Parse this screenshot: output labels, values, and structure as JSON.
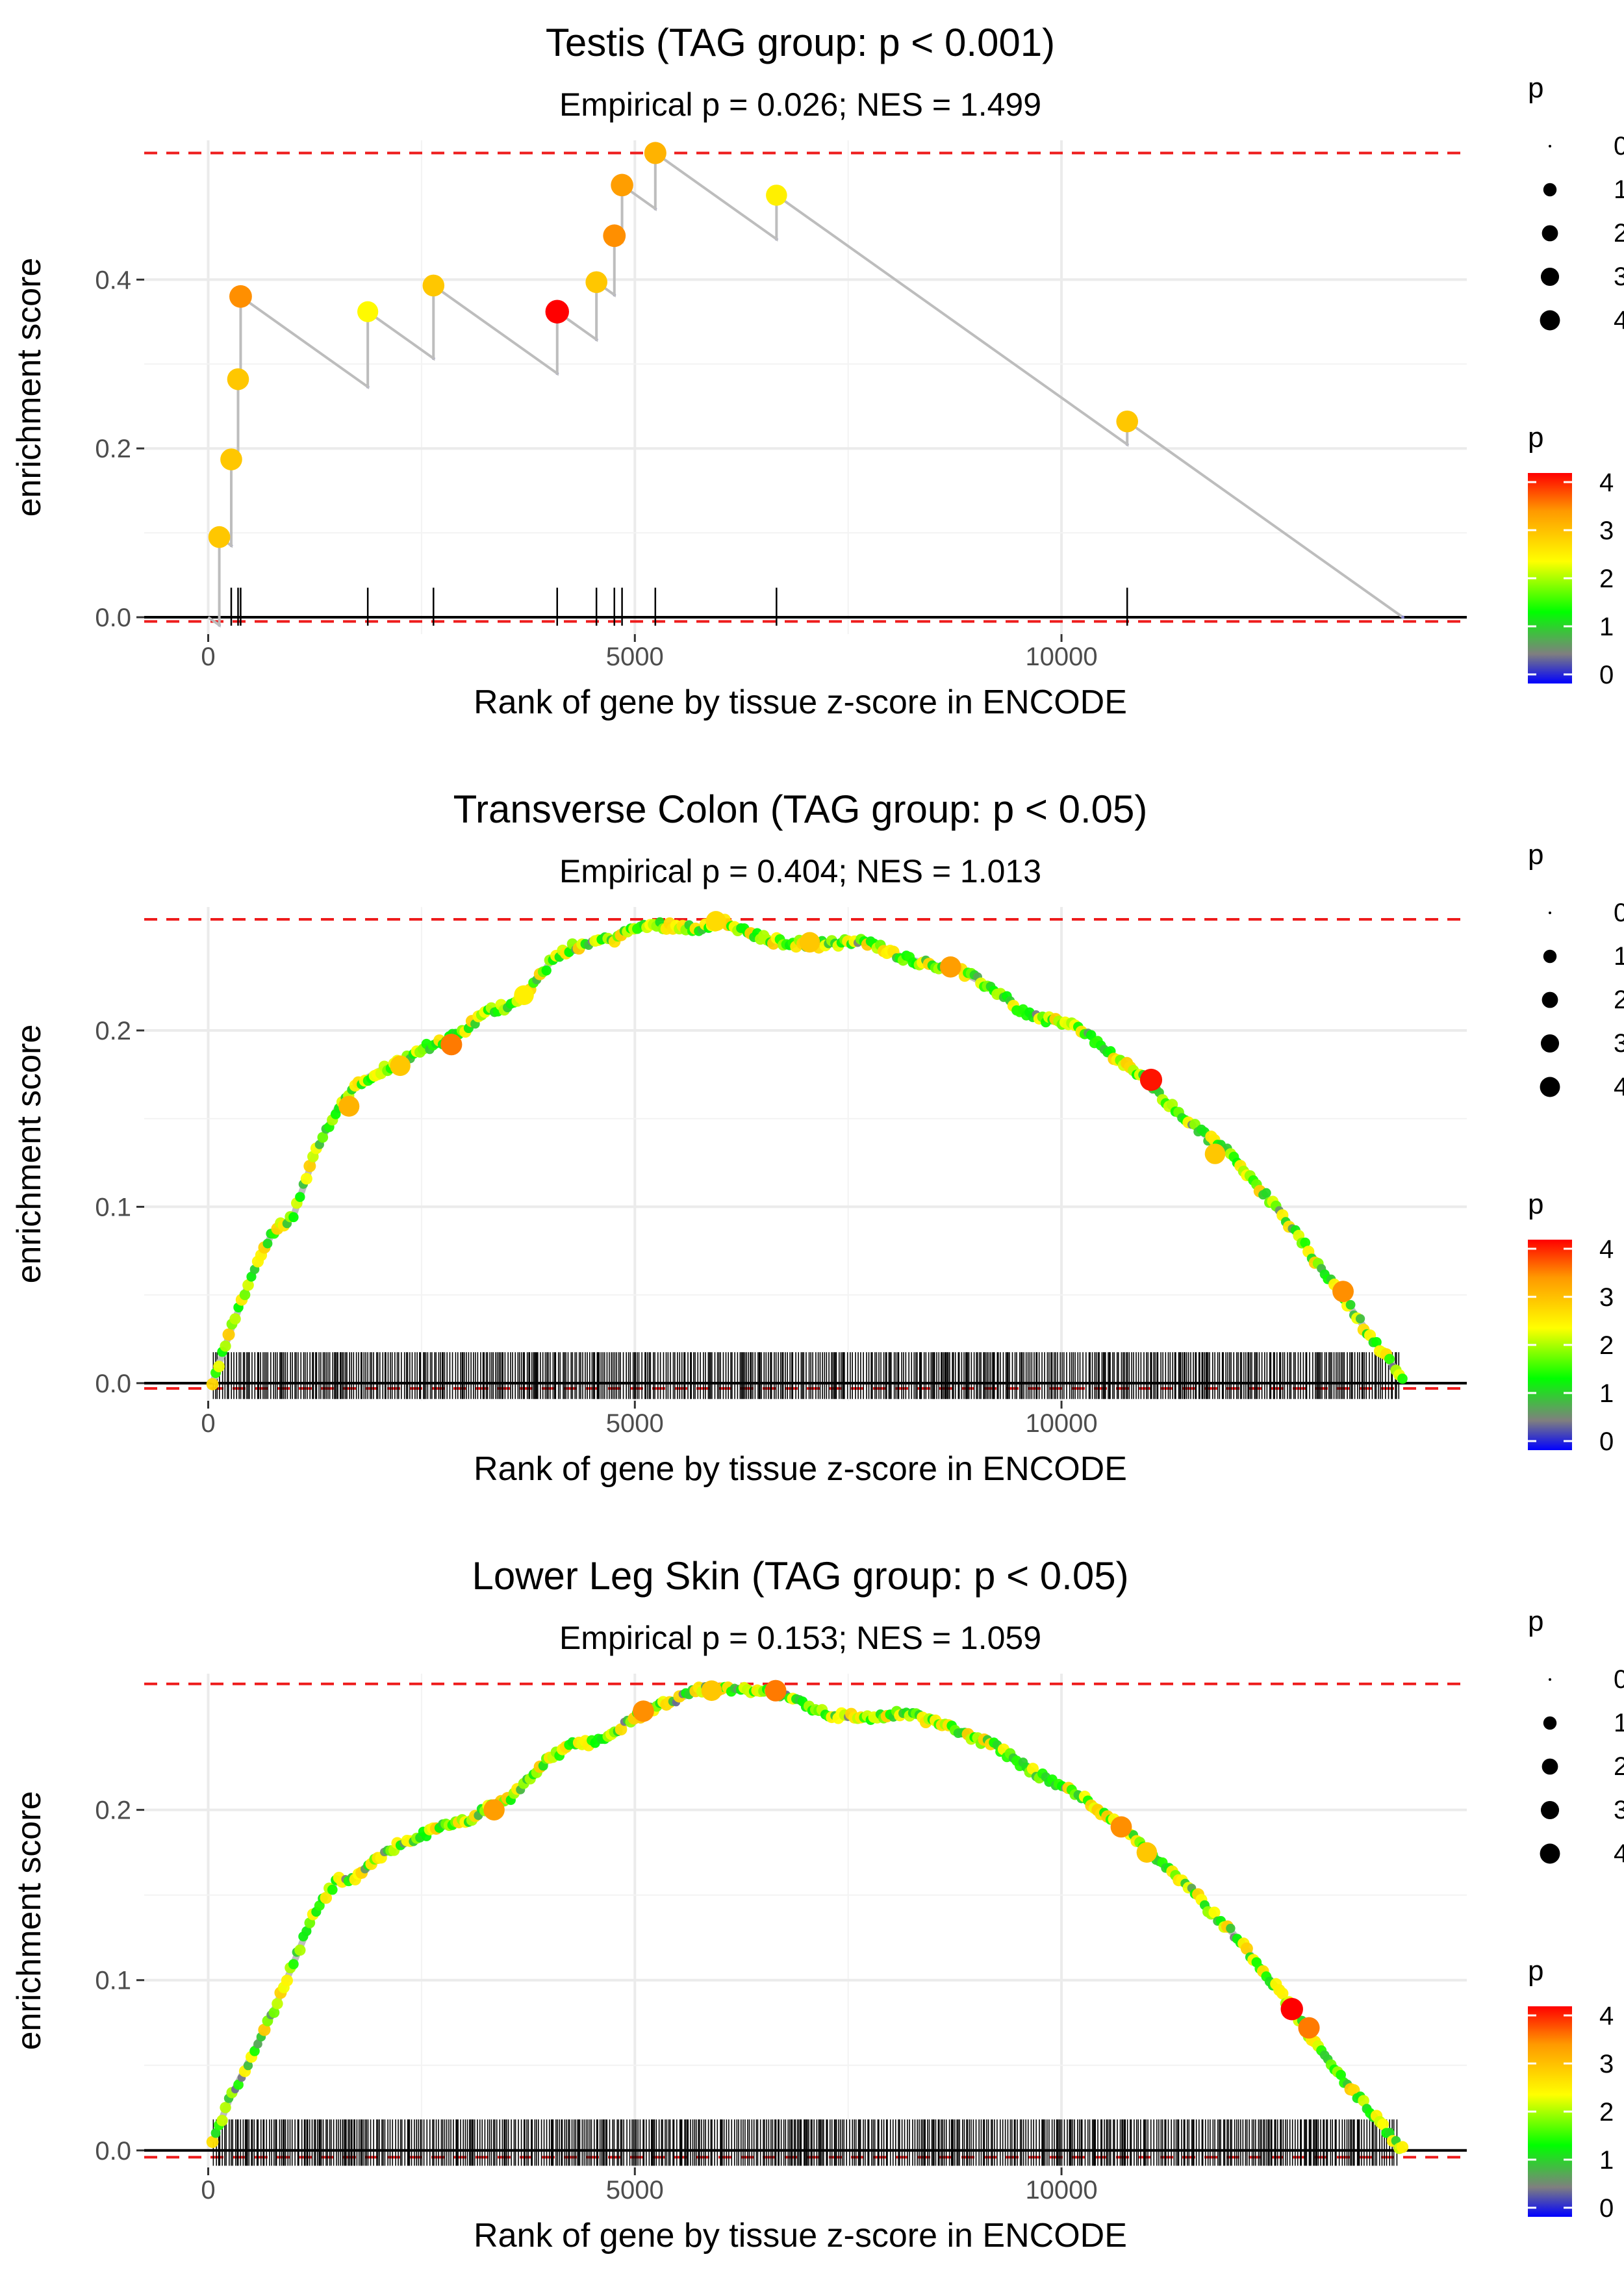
{
  "chart_data": [
    {
      "type": "line",
      "title": "Testis (TAG group: p < 0.001)",
      "subtitle": "Empirical p = 0.026; NES = 1.499",
      "xlabel": "Rank of gene by tissue z-score in ENCODE",
      "ylabel": "enrichment score",
      "xlim": [
        -750,
        14750
      ],
      "ylim": [
        -0.02,
        0.565
      ],
      "xticks": [
        0,
        5000,
        10000
      ],
      "yticks": [
        0.0,
        0.2,
        0.4
      ],
      "ytick_labels": [
        "0.0",
        "0.2",
        "0.4"
      ],
      "max_es": 0.55,
      "min_es": -0.005,
      "n_genes": 14000,
      "mode": "discrete",
      "hits": [
        {
          "x": 130,
          "y": 0.095,
          "p": 3.0
        },
        {
          "x": 270,
          "y": 0.187,
          "p": 3.0
        },
        {
          "x": 350,
          "y": 0.282,
          "p": 3.0
        },
        {
          "x": 380,
          "y": 0.38,
          "p": 3.5
        },
        {
          "x": 1870,
          "y": 0.362,
          "p": 2.5
        },
        {
          "x": 2640,
          "y": 0.393,
          "p": 3.0
        },
        {
          "x": 4090,
          "y": 0.362,
          "p": 4.2
        },
        {
          "x": 4550,
          "y": 0.397,
          "p": 3.0
        },
        {
          "x": 4760,
          "y": 0.452,
          "p": 3.5
        },
        {
          "x": 4850,
          "y": 0.512,
          "p": 3.4
        },
        {
          "x": 5240,
          "y": 0.55,
          "p": 3.2
        },
        {
          "x": 6660,
          "y": 0.5,
          "p": 2.6
        },
        {
          "x": 10770,
          "y": 0.232,
          "p": 3.0
        }
      ],
      "size_legend": {
        "title": "p",
        "labels": [
          "0",
          "1",
          "2",
          "3",
          "4"
        ]
      },
      "color_legend": {
        "title": "p",
        "labels": [
          "4",
          "3",
          "2",
          "1",
          "0"
        ]
      }
    },
    {
      "type": "line",
      "title": "Transverse Colon (TAG group: p < 0.05)",
      "subtitle": "Empirical p = 0.404; NES = 1.013",
      "xlabel": "Rank of gene by tissue z-score in ENCODE",
      "ylabel": "enrichment score",
      "xlim": [
        -750,
        14750
      ],
      "ylim": [
        -0.01,
        0.27
      ],
      "xticks": [
        0,
        5000,
        10000
      ],
      "yticks": [
        0.0,
        0.1,
        0.2
      ],
      "ytick_labels": [
        "0.0",
        "0.1",
        "0.2"
      ],
      "max_es": 0.263,
      "min_es": -0.003,
      "n_genes": 14000,
      "mode": "dense",
      "curve": [
        [
          50,
          0.0
        ],
        [
          250,
          0.028
        ],
        [
          500,
          0.06
        ],
        [
          750,
          0.085
        ],
        [
          1000,
          0.095
        ],
        [
          1250,
          0.13
        ],
        [
          1500,
          0.155
        ],
        [
          1750,
          0.17
        ],
        [
          2000,
          0.177
        ],
        [
          2250,
          0.182
        ],
        [
          2500,
          0.19
        ],
        [
          2750,
          0.193
        ],
        [
          3000,
          0.2
        ],
        [
          3250,
          0.21
        ],
        [
          3500,
          0.214
        ],
        [
          3750,
          0.222
        ],
        [
          4000,
          0.238
        ],
        [
          4250,
          0.247
        ],
        [
          4500,
          0.25
        ],
        [
          4750,
          0.252
        ],
        [
          5000,
          0.258
        ],
        [
          5250,
          0.26
        ],
        [
          5500,
          0.259
        ],
        [
          5750,
          0.258
        ],
        [
          6000,
          0.262
        ],
        [
          6250,
          0.257
        ],
        [
          6500,
          0.252
        ],
        [
          6750,
          0.25
        ],
        [
          7000,
          0.249
        ],
        [
          7250,
          0.249
        ],
        [
          7500,
          0.25
        ],
        [
          7750,
          0.25
        ],
        [
          8000,
          0.244
        ],
        [
          8250,
          0.24
        ],
        [
          8500,
          0.237
        ],
        [
          8750,
          0.235
        ],
        [
          9000,
          0.229
        ],
        [
          9250,
          0.222
        ],
        [
          9500,
          0.212
        ],
        [
          9750,
          0.207
        ],
        [
          10000,
          0.205
        ],
        [
          10250,
          0.2
        ],
        [
          10500,
          0.19
        ],
        [
          10750,
          0.18
        ],
        [
          11000,
          0.172
        ],
        [
          11250,
          0.158
        ],
        [
          11500,
          0.148
        ],
        [
          11750,
          0.138
        ],
        [
          12000,
          0.13
        ],
        [
          12250,
          0.115
        ],
        [
          12500,
          0.1
        ],
        [
          12750,
          0.085
        ],
        [
          13000,
          0.068
        ],
        [
          13250,
          0.052
        ],
        [
          13500,
          0.035
        ],
        [
          13750,
          0.018
        ],
        [
          14000,
          0.003
        ]
      ],
      "hits": [
        {
          "x": 1650,
          "y": 0.157,
          "p": 3.2
        },
        {
          "x": 2250,
          "y": 0.18,
          "p": 3.0
        },
        {
          "x": 2850,
          "y": 0.192,
          "p": 3.6
        },
        {
          "x": 3700,
          "y": 0.22,
          "p": 2.6
        },
        {
          "x": 5950,
          "y": 0.262,
          "p": 2.8
        },
        {
          "x": 7050,
          "y": 0.25,
          "p": 3.0
        },
        {
          "x": 8700,
          "y": 0.236,
          "p": 3.4
        },
        {
          "x": 11050,
          "y": 0.172,
          "p": 4.1
        },
        {
          "x": 11800,
          "y": 0.13,
          "p": 3.0
        },
        {
          "x": 13300,
          "y": 0.052,
          "p": 3.5
        }
      ],
      "size_legend": {
        "title": "p",
        "labels": [
          "0",
          "1",
          "2",
          "3",
          "4"
        ]
      },
      "color_legend": {
        "title": "p",
        "labels": [
          "4",
          "3",
          "2",
          "1",
          "0"
        ]
      }
    },
    {
      "type": "line",
      "title": "Lower Leg Skin (TAG group: p < 0.05)",
      "subtitle": "Empirical p = 0.153; NES = 1.059",
      "xlabel": "Rank of gene by tissue z-score in ENCODE",
      "ylabel": "enrichment score",
      "xlim": [
        -750,
        14750
      ],
      "ylim": [
        -0.01,
        0.28
      ],
      "xticks": [
        0,
        5000,
        10000
      ],
      "yticks": [
        0.0,
        0.1,
        0.2
      ],
      "ytick_labels": [
        "0.0",
        "0.1",
        "0.2"
      ],
      "max_es": 0.274,
      "min_es": -0.004,
      "n_genes": 14000,
      "mode": "dense",
      "curve": [
        [
          50,
          0.005
        ],
        [
          250,
          0.03
        ],
        [
          500,
          0.055
        ],
        [
          750,
          0.08
        ],
        [
          1000,
          0.11
        ],
        [
          1250,
          0.14
        ],
        [
          1500,
          0.158
        ],
        [
          1750,
          0.16
        ],
        [
          2000,
          0.172
        ],
        [
          2250,
          0.18
        ],
        [
          2500,
          0.185
        ],
        [
          2750,
          0.19
        ],
        [
          3000,
          0.193
        ],
        [
          3250,
          0.2
        ],
        [
          3500,
          0.205
        ],
        [
          3750,
          0.218
        ],
        [
          4000,
          0.23
        ],
        [
          4250,
          0.238
        ],
        [
          4500,
          0.24
        ],
        [
          4750,
          0.245
        ],
        [
          5000,
          0.255
        ],
        [
          5250,
          0.26
        ],
        [
          5500,
          0.265
        ],
        [
          5750,
          0.27
        ],
        [
          6000,
          0.272
        ],
        [
          6250,
          0.27
        ],
        [
          6500,
          0.27
        ],
        [
          6750,
          0.268
        ],
        [
          7000,
          0.262
        ],
        [
          7250,
          0.256
        ],
        [
          7500,
          0.255
        ],
        [
          7750,
          0.254
        ],
        [
          8000,
          0.256
        ],
        [
          8250,
          0.256
        ],
        [
          8500,
          0.252
        ],
        [
          8750,
          0.247
        ],
        [
          9000,
          0.242
        ],
        [
          9250,
          0.237
        ],
        [
          9500,
          0.228
        ],
        [
          9750,
          0.22
        ],
        [
          10000,
          0.214
        ],
        [
          10250,
          0.207
        ],
        [
          10500,
          0.198
        ],
        [
          10750,
          0.19
        ],
        [
          11000,
          0.176
        ],
        [
          11250,
          0.166
        ],
        [
          11500,
          0.155
        ],
        [
          11750,
          0.14
        ],
        [
          12000,
          0.128
        ],
        [
          12250,
          0.113
        ],
        [
          12500,
          0.097
        ],
        [
          12750,
          0.08
        ],
        [
          13000,
          0.06
        ],
        [
          13250,
          0.045
        ],
        [
          13500,
          0.03
        ],
        [
          13750,
          0.015
        ],
        [
          14000,
          0.0
        ]
      ],
      "hits": [
        {
          "x": 3350,
          "y": 0.2,
          "p": 3.4
        },
        {
          "x": 5100,
          "y": 0.258,
          "p": 3.5
        },
        {
          "x": 5900,
          "y": 0.27,
          "p": 3.0
        },
        {
          "x": 6650,
          "y": 0.27,
          "p": 3.6
        },
        {
          "x": 10700,
          "y": 0.19,
          "p": 3.5
        },
        {
          "x": 11000,
          "y": 0.175,
          "p": 3.0
        },
        {
          "x": 12700,
          "y": 0.083,
          "p": 4.2
        },
        {
          "x": 12900,
          "y": 0.072,
          "p": 3.6
        }
      ],
      "size_legend": {
        "title": "p",
        "labels": [
          "0",
          "1",
          "2",
          "3",
          "4"
        ]
      },
      "color_legend": {
        "title": "p",
        "labels": [
          "4",
          "3",
          "2",
          "1",
          "0"
        ]
      }
    }
  ],
  "colors": {
    "grid": "#ebebeb",
    "dashed": "#ee1c1c",
    "curve": "#bdbdbd",
    "zero_line": "#000000",
    "gradient": [
      "#ff0000",
      "#ff9900",
      "#ffff00",
      "#00ff00",
      "#7f7f7f",
      "#0000ff"
    ]
  }
}
